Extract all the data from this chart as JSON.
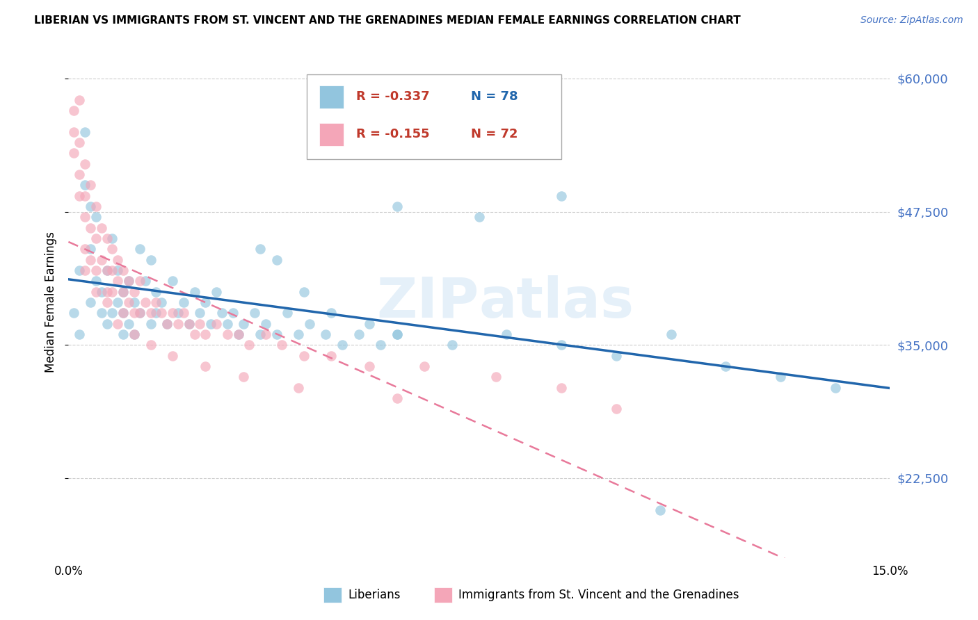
{
  "title": "LIBERIAN VS IMMIGRANTS FROM ST. VINCENT AND THE GRENADINES MEDIAN FEMALE EARNINGS CORRELATION CHART",
  "source": "Source: ZipAtlas.com",
  "ylabel": "Median Female Earnings",
  "xlim": [
    0.0,
    0.15
  ],
  "ylim": [
    15000,
    63000
  ],
  "yticks": [
    22500,
    35000,
    47500,
    60000
  ],
  "ytick_labels": [
    "$22,500",
    "$35,000",
    "$47,500",
    "$60,000"
  ],
  "xticks": [
    0.0,
    0.025,
    0.05,
    0.075,
    0.1,
    0.125,
    0.15
  ],
  "xtick_labels": [
    "0.0%",
    "",
    "",
    "",
    "",
    "",
    "15.0%"
  ],
  "liberian_color": "#92c5de",
  "svg_color": "#f4a6b8",
  "trend_liberian_color": "#2166ac",
  "trend_svg_color": "#e8799a",
  "legend_R1": "R = -0.337",
  "legend_N1": "N = 78",
  "legend_R2": "R = -0.155",
  "legend_N2": "N = 72",
  "watermark": "ZIPatlas",
  "liberian_x": [
    0.001,
    0.002,
    0.002,
    0.003,
    0.003,
    0.004,
    0.004,
    0.004,
    0.005,
    0.005,
    0.006,
    0.006,
    0.007,
    0.007,
    0.008,
    0.008,
    0.009,
    0.009,
    0.01,
    0.01,
    0.01,
    0.011,
    0.011,
    0.012,
    0.012,
    0.013,
    0.013,
    0.014,
    0.015,
    0.015,
    0.016,
    0.016,
    0.017,
    0.018,
    0.019,
    0.02,
    0.021,
    0.022,
    0.023,
    0.024,
    0.025,
    0.026,
    0.027,
    0.028,
    0.029,
    0.03,
    0.031,
    0.032,
    0.034,
    0.035,
    0.036,
    0.038,
    0.04,
    0.042,
    0.044,
    0.047,
    0.05,
    0.053,
    0.057,
    0.06,
    0.035,
    0.038,
    0.043,
    0.048,
    0.055,
    0.06,
    0.07,
    0.08,
    0.09,
    0.1,
    0.11,
    0.12,
    0.13,
    0.14,
    0.06,
    0.075,
    0.09,
    0.108
  ],
  "liberian_y": [
    38000,
    42000,
    36000,
    55000,
    50000,
    48000,
    44000,
    39000,
    47000,
    41000,
    40000,
    38000,
    42000,
    37000,
    45000,
    38000,
    42000,
    39000,
    40000,
    38000,
    36000,
    41000,
    37000,
    39000,
    36000,
    44000,
    38000,
    41000,
    43000,
    37000,
    40000,
    38000,
    39000,
    37000,
    41000,
    38000,
    39000,
    37000,
    40000,
    38000,
    39000,
    37000,
    40000,
    38000,
    37000,
    38000,
    36000,
    37000,
    38000,
    36000,
    37000,
    36000,
    38000,
    36000,
    37000,
    36000,
    35000,
    36000,
    35000,
    36000,
    44000,
    43000,
    40000,
    38000,
    37000,
    36000,
    35000,
    36000,
    35000,
    34000,
    36000,
    33000,
    32000,
    31000,
    48000,
    47000,
    49000,
    19500
  ],
  "svg_x": [
    0.001,
    0.001,
    0.001,
    0.002,
    0.002,
    0.002,
    0.002,
    0.003,
    0.003,
    0.003,
    0.003,
    0.004,
    0.004,
    0.004,
    0.005,
    0.005,
    0.005,
    0.006,
    0.006,
    0.007,
    0.007,
    0.007,
    0.008,
    0.008,
    0.008,
    0.009,
    0.009,
    0.01,
    0.01,
    0.01,
    0.011,
    0.011,
    0.012,
    0.012,
    0.013,
    0.013,
    0.014,
    0.015,
    0.016,
    0.017,
    0.018,
    0.019,
    0.02,
    0.021,
    0.022,
    0.023,
    0.024,
    0.025,
    0.027,
    0.029,
    0.031,
    0.033,
    0.036,
    0.039,
    0.043,
    0.048,
    0.055,
    0.065,
    0.078,
    0.09,
    0.003,
    0.005,
    0.007,
    0.009,
    0.012,
    0.015,
    0.019,
    0.025,
    0.032,
    0.042,
    0.06,
    0.1
  ],
  "svg_y": [
    57000,
    55000,
    53000,
    58000,
    54000,
    51000,
    49000,
    52000,
    49000,
    47000,
    44000,
    50000,
    46000,
    43000,
    48000,
    45000,
    42000,
    46000,
    43000,
    45000,
    42000,
    40000,
    44000,
    42000,
    40000,
    43000,
    41000,
    42000,
    40000,
    38000,
    41000,
    39000,
    40000,
    38000,
    41000,
    38000,
    39000,
    38000,
    39000,
    38000,
    37000,
    38000,
    37000,
    38000,
    37000,
    36000,
    37000,
    36000,
    37000,
    36000,
    36000,
    35000,
    36000,
    35000,
    34000,
    34000,
    33000,
    33000,
    32000,
    31000,
    42000,
    40000,
    39000,
    37000,
    36000,
    35000,
    34000,
    33000,
    32000,
    31000,
    30000,
    29000
  ]
}
